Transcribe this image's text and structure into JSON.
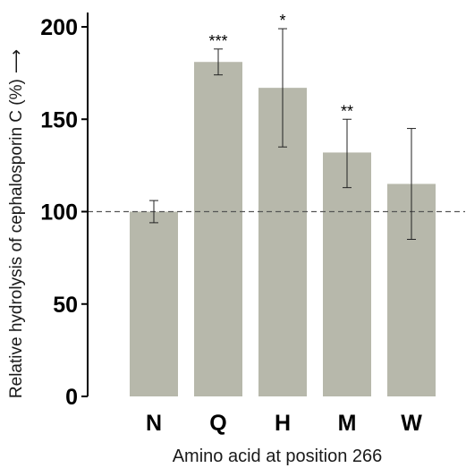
{
  "chart_data": {
    "type": "bar",
    "categories": [
      "N",
      "Q",
      "H",
      "M",
      "W"
    ],
    "values": [
      100,
      181,
      167,
      132,
      115
    ],
    "error_low": [
      94,
      174,
      135,
      113,
      85
    ],
    "error_high": [
      106,
      188,
      199,
      150,
      145
    ],
    "significance": [
      "",
      "***",
      "*",
      "**",
      ""
    ],
    "reference_line": 100,
    "xlabel": "Amino acid at position 266",
    "ylabel": "Relative hydrolysis of cephalosporin C (%)",
    "ylabel_arrow": "⟶",
    "yticks": [
      0,
      50,
      100,
      150,
      200
    ],
    "ylim": [
      0,
      200
    ],
    "grid": false,
    "bar_color": "#b7b8ab",
    "reference_line_color": "#555555",
    "axis_color": "#000000"
  }
}
